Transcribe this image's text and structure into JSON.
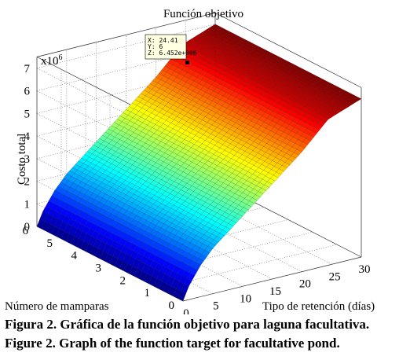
{
  "chart_data": {
    "type": "surface",
    "title": "Función objetivo",
    "xlabel": "Tipo de retención (días)",
    "ylabel": "Número de mamparas",
    "zlabel": "Costo total",
    "z_exponent_label": "x10",
    "z_exponent_power": "6",
    "x_range": [
      0,
      30
    ],
    "y_range": [
      0,
      6
    ],
    "z_range": [
      0,
      7500000
    ],
    "x_ticks": [
      "0",
      "5",
      "10",
      "15",
      "20",
      "25",
      "30"
    ],
    "y_ticks": [
      "0",
      "1",
      "2",
      "3",
      "4",
      "5",
      "6"
    ],
    "z_ticks": [
      "0",
      "1",
      "2",
      "3",
      "4",
      "5",
      "6",
      "7"
    ],
    "colormap": "jet",
    "grid": true,
    "surface_samples": {
      "x": [
        0,
        1,
        3,
        5,
        10,
        15,
        20,
        24.41,
        30
      ],
      "z": [
        0,
        600000,
        1400000,
        2000000,
        3100000,
        4200000,
        5300000,
        6452000,
        7000000
      ]
    },
    "datatip": {
      "x_text": "X: 24.41",
      "y_text": "Y: 6",
      "z_text": "Z: 6.452e+006",
      "x": 24.41,
      "y": 6,
      "z": 6452000
    }
  },
  "caption": {
    "line1": "Figura 2. Gráfica de la función objetivo para laguna facultativa.",
    "line2": "Figure 2. Graph of the function target for facultative pond."
  }
}
